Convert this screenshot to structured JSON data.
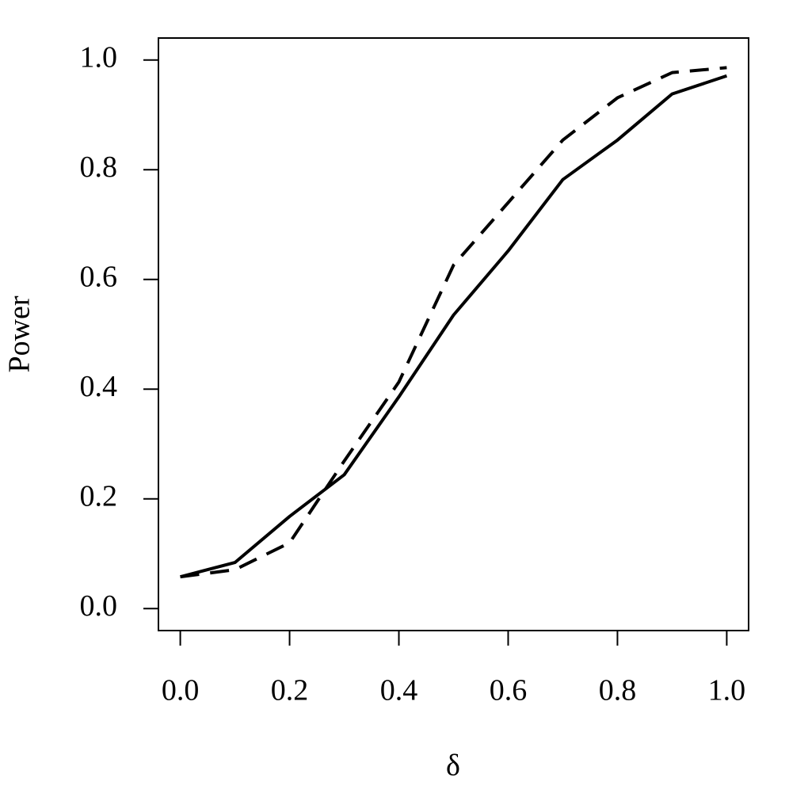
{
  "chart_data": {
    "type": "line",
    "x_label": "δ",
    "y_label": "Power",
    "x": [
      0,
      0.1,
      0.2,
      0.3,
      0.4,
      0.5,
      0.6,
      0.7,
      0.8,
      0.9,
      1
    ],
    "series": [
      {
        "color": "#000000",
        "dashed": false,
        "values": [
          0.058,
          0.084,
          0.168,
          0.244,
          0.386,
          0.535,
          0.652,
          0.782,
          0.854,
          0.938,
          0.971
        ]
      },
      {
        "color": "#000000",
        "dashed": true,
        "values": [
          0.058,
          0.071,
          0.12,
          0.269,
          0.413,
          0.626,
          0.74,
          0.854,
          0.931,
          0.977,
          0.986
        ]
      }
    ],
    "xlim": [
      -0.04,
      1.04
    ],
    "ylim": [
      -0.04,
      1.04
    ],
    "xticks": [
      {
        "value": 0,
        "label": "0.0"
      },
      0.2,
      0.4,
      0.6,
      0.8,
      {
        "value": 1,
        "label": "1.0"
      }
    ],
    "yticks": [
      {
        "value": 0,
        "label": "0.0"
      },
      0.2,
      0.4,
      0.6,
      0.8,
      {
        "value": 1,
        "label": "1.0"
      }
    ],
    "grid": false
  }
}
